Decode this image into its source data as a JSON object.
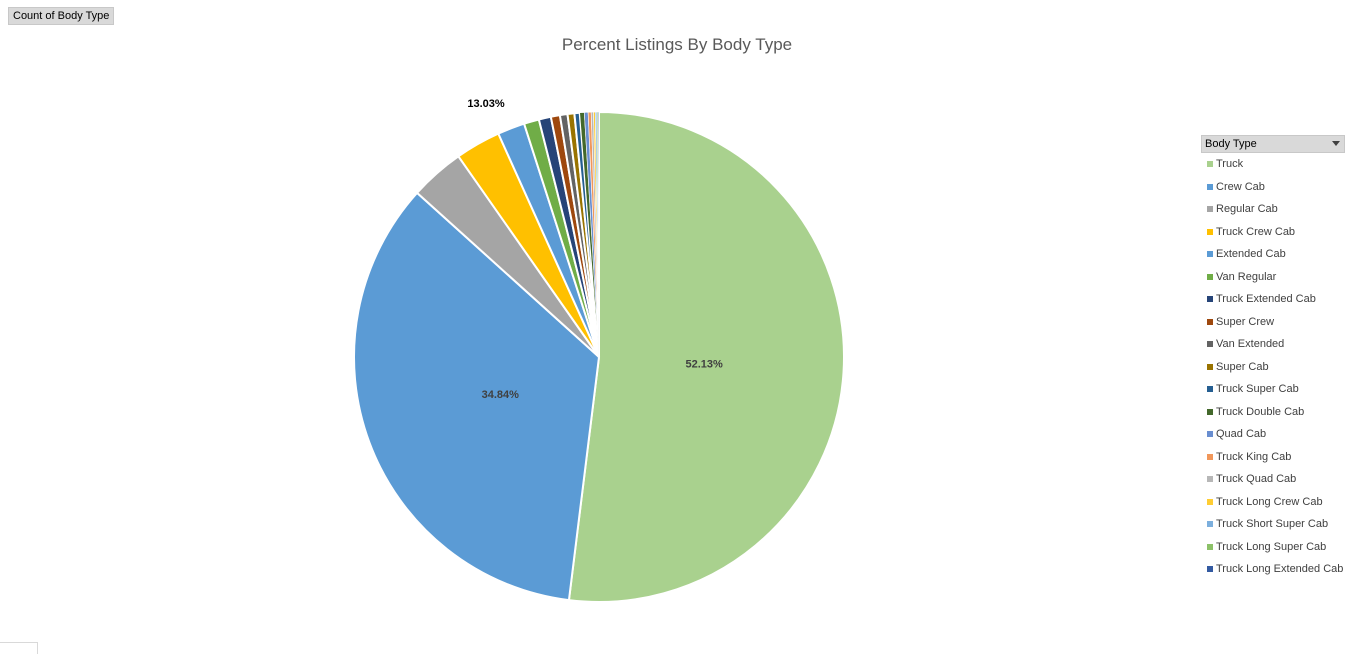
{
  "field_button": {
    "label": "Count of Body Type"
  },
  "legend": {
    "title": "Body Type"
  },
  "chart_data": {
    "type": "pie",
    "title": "Percent Listings By Body Type",
    "start_angle_deg": 0,
    "direction": "clockwise",
    "slices": [
      {
        "label": "Truck",
        "value": 52.13,
        "color": "#a9d18e",
        "data_label": "52.13%"
      },
      {
        "label": "Crew Cab",
        "value": 34.84,
        "color": "#5b9bd5",
        "data_label": "34.84%"
      },
      {
        "label": "Regular Cab",
        "value": 3.6,
        "color": "#a5a5a5",
        "data_label": ""
      },
      {
        "label": "Truck Crew Cab",
        "value": 3.0,
        "color": "#ffc000",
        "data_label": ""
      },
      {
        "label": "Extended Cab",
        "value": 1.8,
        "color": "#5b9bd5",
        "data_label": ""
      },
      {
        "label": "Van Regular",
        "value": 1.0,
        "color": "#70ad47",
        "data_label": ""
      },
      {
        "label": "Truck Extended Cab",
        "value": 0.8,
        "color": "#264478",
        "data_label": ""
      },
      {
        "label": "Super Crew",
        "value": 0.6,
        "color": "#9e480e",
        "data_label": ""
      },
      {
        "label": "Van Extended",
        "value": 0.5,
        "color": "#636363",
        "data_label": ""
      },
      {
        "label": "Super Cab",
        "value": 0.45,
        "color": "#997300",
        "data_label": ""
      },
      {
        "label": "Truck Super Cab",
        "value": 0.35,
        "color": "#255e91",
        "data_label": ""
      },
      {
        "label": "Truck Double Cab",
        "value": 0.3,
        "color": "#43682b",
        "data_label": ""
      },
      {
        "label": "Quad Cab",
        "value": 0.25,
        "color": "#698ed0",
        "data_label": ""
      },
      {
        "label": "Truck King Cab",
        "value": 0.2,
        "color": "#f1975a",
        "data_label": ""
      },
      {
        "label": "Truck Quad Cab",
        "value": 0.15,
        "color": "#b7b7b7",
        "data_label": ""
      },
      {
        "label": "Truck Long Crew Cab",
        "value": 0.12,
        "color": "#ffcd33",
        "data_label": ""
      },
      {
        "label": "Truck Short Super Cab",
        "value": 0.1,
        "color": "#7cafdd",
        "data_label": ""
      },
      {
        "label": "Truck Long Super Cab",
        "value": 0.08,
        "color": "#8cc168",
        "data_label": ""
      },
      {
        "label": "Truck Long Extended Cab",
        "value": 0.06,
        "color": "#335aa1",
        "data_label": ""
      }
    ],
    "extra_labels": [
      {
        "text": "13.03%"
      }
    ],
    "legend_position": "right"
  }
}
